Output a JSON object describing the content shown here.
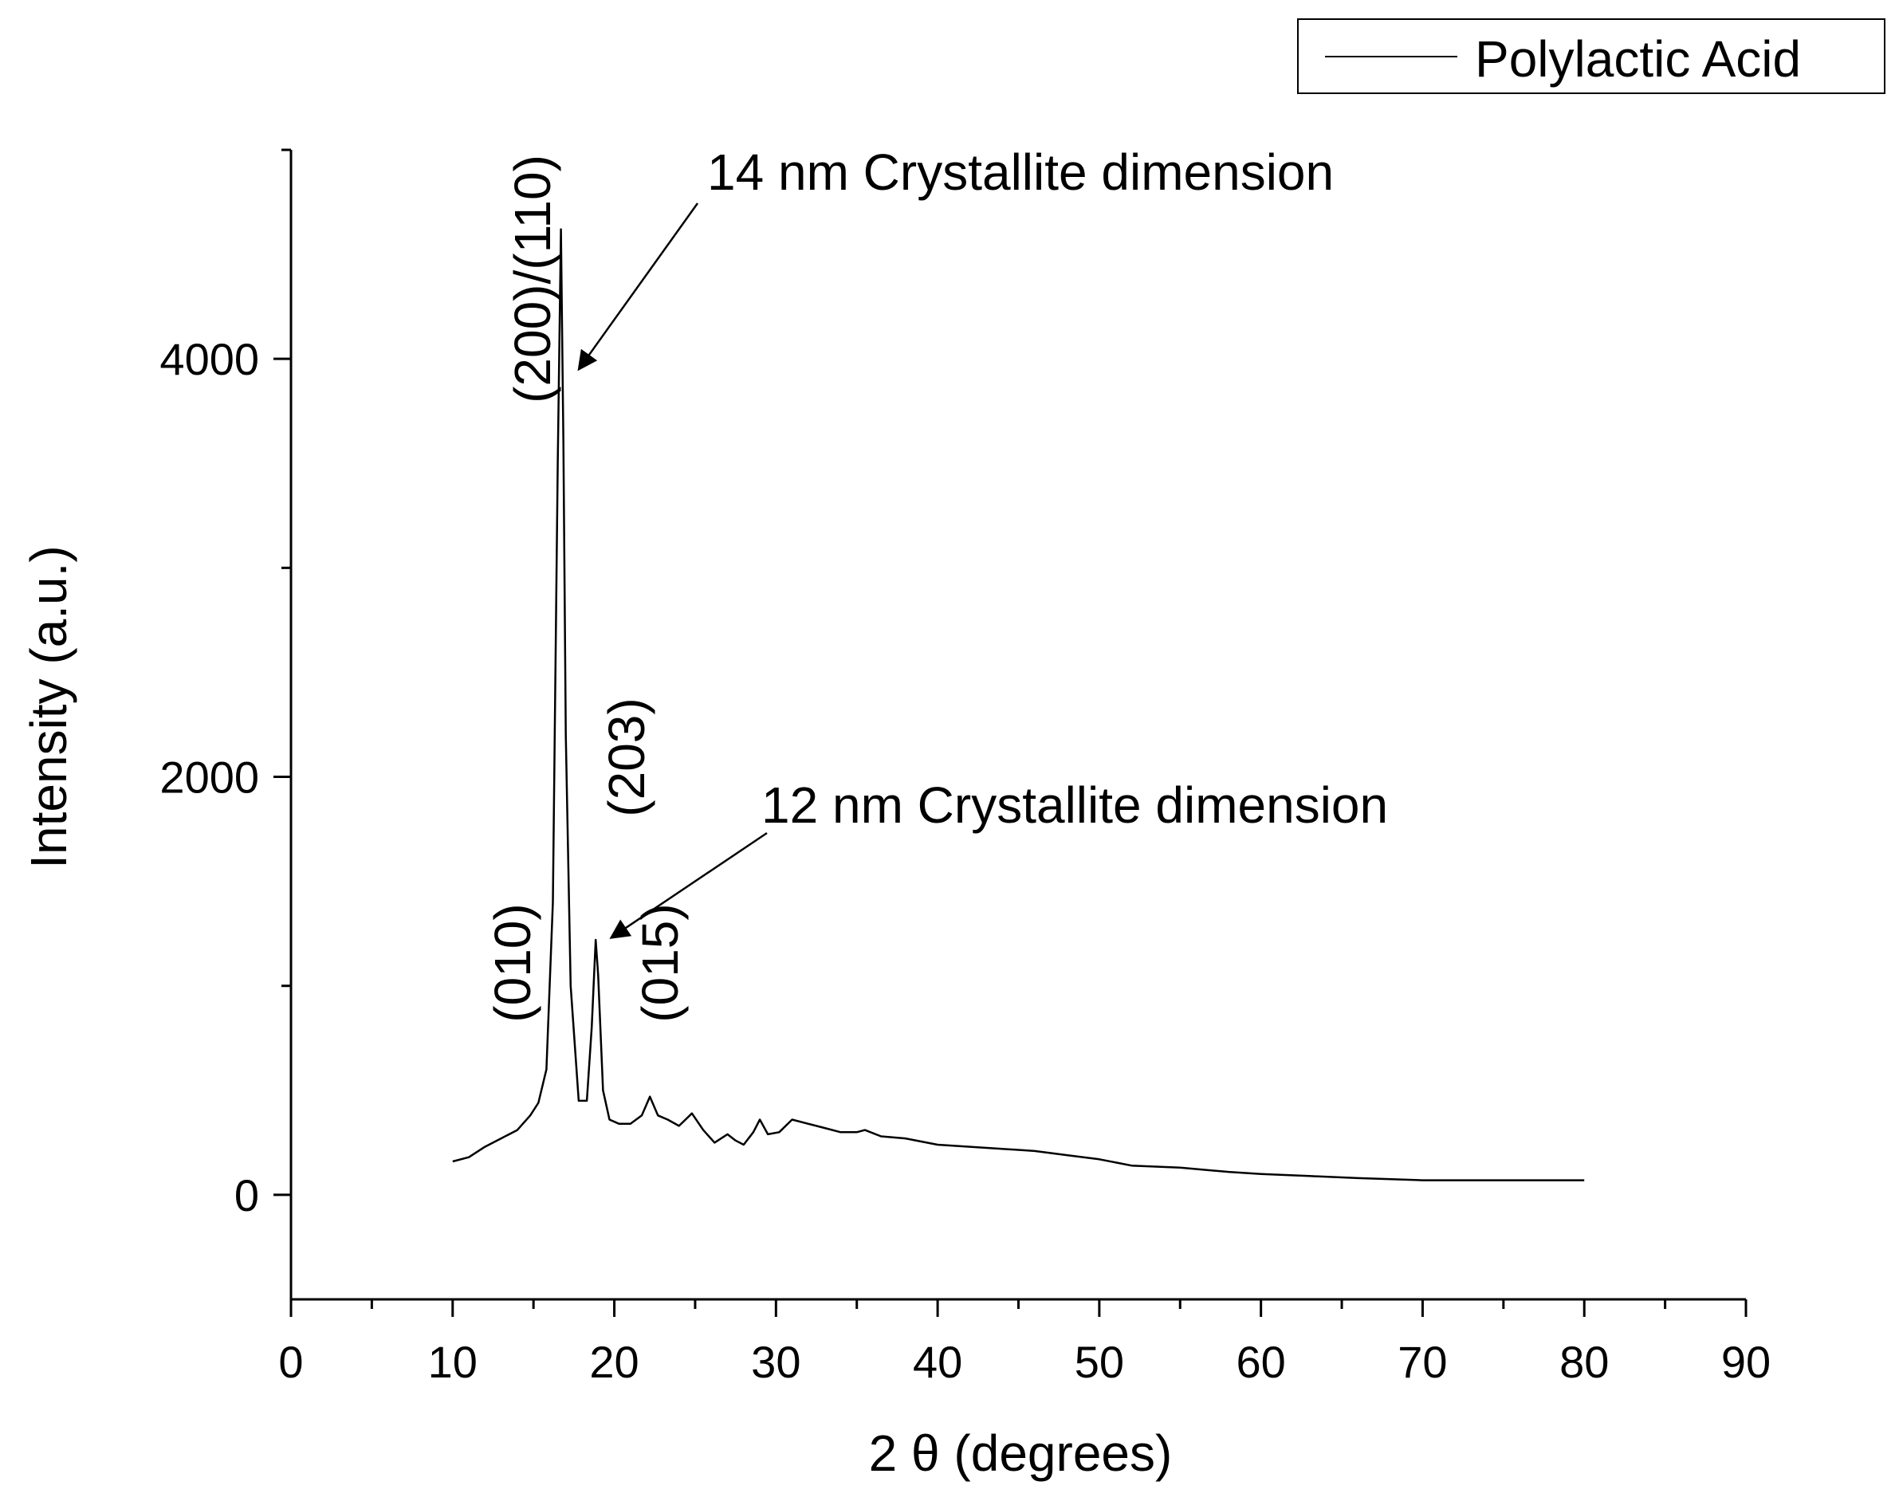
{
  "chart_data": {
    "type": "line",
    "title": "",
    "xlabel": "2 θ (degrees)",
    "ylabel": "Intensity (a.u.)",
    "xlim": [
      0,
      90
    ],
    "ylim": [
      -500,
      5000
    ],
    "x_ticks": [
      0,
      10,
      20,
      30,
      40,
      50,
      60,
      70,
      80,
      90
    ],
    "y_ticks": [
      0,
      2000,
      4000
    ],
    "grid": false,
    "legend": {
      "position": "top-right",
      "entries": [
        "Polylactic Acid"
      ]
    },
    "series": [
      {
        "name": "Polylactic Acid",
        "color": "#000000",
        "x": [
          10,
          11,
          12,
          13,
          14,
          14.8,
          15.3,
          15.8,
          16.2,
          16.5,
          16.7,
          16.85,
          17.0,
          17.3,
          17.8,
          18.3,
          18.6,
          18.85,
          19.0,
          19.3,
          19.7,
          20.3,
          21.0,
          21.7,
          22.2,
          22.7,
          23.3,
          24.0,
          24.8,
          25.5,
          26.2,
          27.0,
          27.5,
          28.0,
          28.6,
          29.0,
          29.5,
          30.2,
          31.0,
          32.0,
          33.0,
          34.0,
          35.0,
          35.5,
          36.5,
          38.0,
          40.0,
          42.0,
          44.0,
          46.0,
          48.0,
          50.0,
          52.0,
          55.0,
          58.0,
          60.0,
          63.0,
          66.0,
          70.0,
          73.0,
          76.0,
          80.0
        ],
        "y": [
          160,
          180,
          230,
          270,
          310,
          380,
          440,
          600,
          1400,
          3500,
          4620,
          3600,
          2200,
          1000,
          450,
          450,
          800,
          1220,
          1050,
          500,
          360,
          340,
          340,
          380,
          470,
          380,
          360,
          330,
          390,
          310,
          250,
          290,
          260,
          240,
          300,
          360,
          290,
          300,
          360,
          340,
          320,
          300,
          300,
          310,
          280,
          270,
          240,
          230,
          220,
          210,
          190,
          170,
          140,
          130,
          110,
          100,
          90,
          80,
          70,
          70,
          70,
          70
        ]
      }
    ],
    "annotations": [
      {
        "text": "14 nm Crystallite dimension",
        "arrow_to": [
          17.8,
          3950
        ]
      },
      {
        "text": "12 nm Crystallite dimension",
        "arrow_to": [
          19.8,
          1230
        ]
      }
    ],
    "peak_labels": [
      {
        "text": "(200)/(110)",
        "x": 15.8,
        "y": 3700
      },
      {
        "text": "(010)",
        "x": 15.0,
        "y": 550
      },
      {
        "text": "(203)",
        "x": 21.0,
        "y": 1350
      },
      {
        "text": "(015)",
        "x": 24.0,
        "y": 550
      }
    ]
  }
}
